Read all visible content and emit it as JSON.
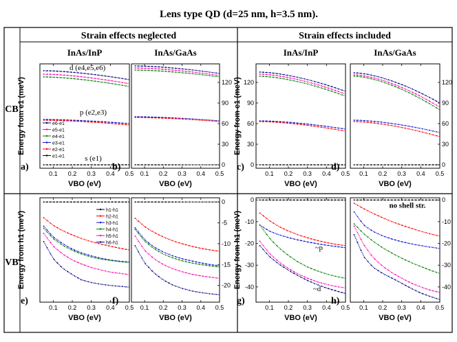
{
  "title": "Lens type QD (d=25 nm, h=3.5 nm).",
  "headers": {
    "neglected": "Strain effects neglected",
    "included": "Strain effects included"
  },
  "row_labels": {
    "cb": "CB",
    "vb": "VB"
  },
  "axis_labels": {
    "x": "VBO (eV)",
    "y_cb": "Energy from e1 (meV)",
    "y_vb": "Energy from h1 (meV)"
  },
  "colors": {
    "c1": "#000000",
    "c2": "#ff0000",
    "c3": "#1010d0",
    "c4": "#008000",
    "c5": "#ff00aa",
    "c6": "#000080"
  },
  "chart_data": [
    {
      "id": "a",
      "type": "line",
      "panel_label": "a)",
      "subtitle": "InAs/InP",
      "xlabel": "VBO (eV)",
      "ylabel": "Energy from e1 (meV)",
      "xlim": [
        0.03,
        0.5
      ],
      "ylim": [
        -5,
        147
      ],
      "xticks": [
        0.1,
        0.2,
        0.3,
        0.4,
        0.5
      ],
      "yticks": [],
      "x": [
        0.05,
        0.5
      ],
      "series": [
        {
          "name": "e6-e1",
          "color": "#000080",
          "values": [
            137,
            124
          ]
        },
        {
          "name": "e5-e1",
          "color": "#ff00aa",
          "values": [
            132,
            118
          ]
        },
        {
          "name": "e4-e1",
          "color": "#008000",
          "values": [
            128,
            114
          ]
        },
        {
          "name": "e3-e1",
          "color": "#1010d0",
          "values": [
            66,
            60
          ]
        },
        {
          "name": "e2-e1",
          "color": "#ff0000",
          "values": [
            65,
            58
          ]
        },
        {
          "name": "e1-e1",
          "color": "#000000",
          "values": [
            0,
            0
          ]
        }
      ],
      "legend": {
        "position": "left-middle",
        "items": [
          "e6-e1",
          "e5-e1",
          "e4-e1",
          "e3-e1",
          "e2-e1",
          "e1-e1"
        ]
      },
      "annotations": [
        {
          "text": "d (e4,e5,e6)",
          "x": 0.28,
          "y": 138
        },
        {
          "text": "p (e2,e3)",
          "x": 0.31,
          "y": 73
        },
        {
          "text": "s (e1)",
          "x": 0.31,
          "y": 6
        }
      ]
    },
    {
      "id": "b",
      "type": "line",
      "panel_label": "b)",
      "subtitle": "InAs/GaAs",
      "xlabel": "VBO (eV)",
      "ylabel": "",
      "xlim": [
        0.03,
        0.5
      ],
      "ylim": [
        -5,
        147
      ],
      "xticks": [
        0.1,
        0.2,
        0.3,
        0.4,
        0.5
      ],
      "yticks": [
        0,
        30,
        60,
        90,
        120
      ],
      "x": [
        0.05,
        0.5
      ],
      "series": [
        {
          "name": "e6-e1",
          "color": "#000080",
          "values": [
            144,
            133
          ]
        },
        {
          "name": "e5-e1",
          "color": "#ff00aa",
          "values": [
            141,
            130
          ]
        },
        {
          "name": "e4-e1",
          "color": "#008000",
          "values": [
            138,
            128
          ]
        },
        {
          "name": "e3-e1",
          "color": "#1010d0",
          "values": [
            70,
            64
          ]
        },
        {
          "name": "e2-e1",
          "color": "#ff0000",
          "values": [
            69,
            63
          ]
        },
        {
          "name": "e1-e1",
          "color": "#000000",
          "values": [
            0,
            0
          ]
        }
      ]
    },
    {
      "id": "c",
      "type": "line",
      "panel_label": "c)",
      "subtitle": "InAs/InP",
      "xlabel": "VBO (eV)",
      "ylabel": "Energy from e1 (meV)",
      "xlim": [
        0.03,
        0.5
      ],
      "ylim": [
        -5,
        147
      ],
      "xticks": [
        0.1,
        0.2,
        0.3,
        0.4,
        0.5
      ],
      "yticks": [
        0,
        30,
        60,
        90,
        120
      ],
      "x": [
        0.05,
        0.5
      ],
      "series": [
        {
          "name": "e6-e1",
          "color": "#000080",
          "values": [
            135,
            107
          ]
        },
        {
          "name": "e5-e1",
          "color": "#ff00aa",
          "values": [
            132,
            103
          ]
        },
        {
          "name": "e4-e1",
          "color": "#008000",
          "values": [
            129,
            100
          ]
        },
        {
          "name": "e3-e1",
          "color": "#1010d0",
          "values": [
            64,
            52
          ]
        },
        {
          "name": "e2-e1",
          "color": "#ff0000",
          "values": [
            63,
            49
          ]
        },
        {
          "name": "e1-e1",
          "color": "#000000",
          "values": [
            0,
            0
          ]
        }
      ]
    },
    {
      "id": "d",
      "type": "line",
      "panel_label": "d)",
      "subtitle": "InAs/GaAs",
      "xlabel": "VBO (eV)",
      "ylabel": "",
      "xlim": [
        0.03,
        0.5
      ],
      "ylim": [
        -5,
        147
      ],
      "xticks": [
        0.1,
        0.2,
        0.3,
        0.4,
        0.5
      ],
      "yticks": [
        0,
        30,
        60,
        90,
        120
      ],
      "x": [
        0.05,
        0.5
      ],
      "series": [
        {
          "name": "e6-e1",
          "color": "#000080",
          "values": [
            134,
            90
          ]
        },
        {
          "name": "e5-e1",
          "color": "#ff00aa",
          "values": [
            131,
            84
          ]
        },
        {
          "name": "e4-e1",
          "color": "#008000",
          "values": [
            129,
            80
          ]
        },
        {
          "name": "e3-e1",
          "color": "#1010d0",
          "values": [
            65,
            47
          ]
        },
        {
          "name": "e2-e1",
          "color": "#ff0000",
          "values": [
            63,
            41
          ]
        },
        {
          "name": "e1-e1",
          "color": "#000000",
          "values": [
            0,
            0
          ]
        }
      ]
    },
    {
      "id": "e",
      "type": "line",
      "panel_label": "e)",
      "subtitle": "",
      "xlabel": "VBO (eV)",
      "ylabel": "Energy from h1 (meV)",
      "xlim": [
        0.03,
        0.5
      ],
      "ylim": [
        -24,
        1
      ],
      "xticks": [
        0.1,
        0.2,
        0.3,
        0.4,
        0.5
      ],
      "yticks": [],
      "x": [
        0.05,
        0.1,
        0.15,
        0.2,
        0.25,
        0.3,
        0.35,
        0.4,
        0.45,
        0.5
      ],
      "series": [
        {
          "name": "h1-h1",
          "color": "#000000",
          "values": [
            0,
            0,
            0,
            0,
            0,
            0,
            0,
            0,
            0,
            0
          ]
        },
        {
          "name": "h2-h1",
          "color": "#ff0000",
          "values": [
            -3.8,
            -5.6,
            -6.9,
            -7.9,
            -8.8,
            -9.5,
            -10.1,
            -10.6,
            -11.1,
            -11.5
          ]
        },
        {
          "name": "h3-h1",
          "color": "#1010d0",
          "values": [
            -5.8,
            -8.4,
            -10.0,
            -11.3,
            -12.2,
            -12.9,
            -13.5,
            -13.9,
            -14.2,
            -14.4
          ]
        },
        {
          "name": "h4-h1",
          "color": "#008000",
          "values": [
            -6.3,
            -8.8,
            -10.4,
            -11.6,
            -12.5,
            -13.2,
            -13.7,
            -14.0,
            -14.3,
            -14.5
          ]
        },
        {
          "name": "h5-h1",
          "color": "#ff00aa",
          "values": [
            -7.5,
            -10.6,
            -12.5,
            -13.9,
            -14.9,
            -15.7,
            -16.3,
            -16.8,
            -17.1,
            -17.4
          ]
        },
        {
          "name": "h6-h1",
          "color": "#000080",
          "values": [
            -9.5,
            -13.6,
            -15.9,
            -17.4,
            -18.7,
            -19.3,
            -19.7,
            -20.0,
            -20.2,
            -20.4
          ]
        }
      ],
      "legend": {
        "position": "top-right",
        "items": [
          "h1-h1",
          "h2-h1",
          "h3-h1",
          "h4-h1",
          "h5-h1",
          "h6-h1"
        ]
      }
    },
    {
      "id": "f",
      "type": "line",
      "panel_label": "f)",
      "subtitle": "",
      "xlabel": "VBO (eV)",
      "ylabel": "",
      "xlim": [
        0.03,
        0.5
      ],
      "ylim": [
        -24,
        1
      ],
      "xticks": [
        0.1,
        0.2,
        0.3,
        0.4,
        0.5
      ],
      "yticks": [
        0,
        -5,
        -10,
        -15,
        -20
      ],
      "x": [
        0.05,
        0.1,
        0.15,
        0.2,
        0.25,
        0.3,
        0.35,
        0.4,
        0.45,
        0.5
      ],
      "series": [
        {
          "name": "h1-h1",
          "color": "#000000",
          "values": [
            0,
            0,
            0,
            0,
            0,
            0,
            0,
            0,
            0,
            0
          ]
        },
        {
          "name": "h2-h1",
          "color": "#ff0000",
          "values": [
            -3.9,
            -5.9,
            -7.3,
            -8.4,
            -9.3,
            -10.0,
            -10.6,
            -11.1,
            -11.5,
            -11.8
          ]
        },
        {
          "name": "h3-h1",
          "color": "#1010d0",
          "values": [
            -6.2,
            -9.0,
            -10.8,
            -12.0,
            -12.9,
            -13.6,
            -14.1,
            -14.6,
            -15.0,
            -15.3
          ]
        },
        {
          "name": "h4-h1",
          "color": "#008000",
          "values": [
            -6.6,
            -9.4,
            -11.2,
            -12.5,
            -13.4,
            -14.1,
            -14.6,
            -15.0,
            -15.3,
            -15.6
          ]
        },
        {
          "name": "h5-h1",
          "color": "#ff00aa",
          "values": [
            -8.2,
            -11.6,
            -13.6,
            -15.0,
            -16.0,
            -16.7,
            -17.3,
            -17.7,
            -18.0,
            -18.3
          ]
        },
        {
          "name": "h6-h1",
          "color": "#000080",
          "values": [
            -10.5,
            -14.6,
            -17.0,
            -18.7,
            -19.9,
            -20.7,
            -21.3,
            -21.7,
            -22.0,
            -22.2
          ]
        }
      ]
    },
    {
      "id": "g",
      "type": "line",
      "panel_label": "g)",
      "subtitle": "",
      "xlabel": "VBO (eV)",
      "ylabel": "Energy from h1 (meV)",
      "xlim": [
        0.03,
        0.5
      ],
      "ylim": [
        -47,
        1
      ],
      "xticks": [
        0.1,
        0.2,
        0.3,
        0.4,
        0.5
      ],
      "yticks": [
        0,
        -10,
        -20,
        -30,
        -40
      ],
      "x": [
        0.05,
        0.1,
        0.15,
        0.2,
        0.25,
        0.3,
        0.35,
        0.4,
        0.45,
        0.5
      ],
      "series": [
        {
          "name": "h1-h1",
          "color": "#000000",
          "values": [
            0,
            0,
            0,
            0,
            0,
            0,
            0,
            0,
            0,
            0
          ]
        },
        {
          "name": "h2-h1",
          "color": "#ff0000",
          "values": [
            -6,
            -9.5,
            -12.2,
            -14.3,
            -16.0,
            -17.4,
            -18.6,
            -19.6,
            -20.4,
            -21.0
          ]
        },
        {
          "name": "h3-h1",
          "color": "#1010d0",
          "values": [
            -11.5,
            -14.3,
            -16.0,
            -17.3,
            -18.4,
            -19.3,
            -20.1,
            -20.8,
            -21.4,
            -22.0
          ]
        },
        {
          "name": "h4-h1",
          "color": "#008000",
          "values": [
            -11.5,
            -17.5,
            -22.0,
            -25.5,
            -28.5,
            -30.8,
            -32.6,
            -34.0,
            -35.2,
            -36.0
          ]
        },
        {
          "name": "h5-h1",
          "color": "#ff00aa",
          "values": [
            -19.0,
            -24.5,
            -28.5,
            -31.5,
            -34.0,
            -36.0,
            -37.6,
            -38.8,
            -39.8,
            -40.5
          ]
        },
        {
          "name": "h6-h1",
          "color": "#000080",
          "values": [
            -21.0,
            -26.0,
            -29.5,
            -32.3,
            -34.8,
            -37.0,
            -38.9,
            -40.5,
            -41.8,
            -43.0
          ]
        }
      ],
      "annotations": [
        {
          "text": "~p",
          "x": 0.36,
          "y": -23
        },
        {
          "text": "~d",
          "x": 0.35,
          "y": -42
        }
      ]
    },
    {
      "id": "h",
      "type": "line",
      "panel_label": "h)",
      "subtitle": "",
      "xlabel": "VBO (eV)",
      "ylabel": "",
      "xlim": [
        0.03,
        0.5
      ],
      "ylim": [
        -47,
        1
      ],
      "xticks": [
        0.1,
        0.2,
        0.3,
        0.4,
        0.5
      ],
      "yticks": [
        0,
        -10,
        -20,
        -30,
        -40
      ],
      "x": [
        0.05,
        0.1,
        0.15,
        0.2,
        0.25,
        0.3,
        0.35,
        0.4,
        0.45,
        0.5
      ],
      "series": [
        {
          "name": "h1-h1",
          "color": "#000000",
          "values": [
            0,
            0,
            0,
            0,
            0,
            0,
            0,
            0,
            0,
            0
          ]
        },
        {
          "name": "h2-h1",
          "color": "#ff0000",
          "values": [
            -1.5,
            -4.0,
            -6.2,
            -8.2,
            -10.0,
            -11.6,
            -13.0,
            -14.4,
            -15.6,
            -16.6
          ]
        },
        {
          "name": "h3-h1",
          "color": "#1010d0",
          "values": [
            -5.5,
            -11.5,
            -14.5,
            -16.5,
            -18.0,
            -19.2,
            -20.2,
            -21.0,
            -21.7,
            -22.3
          ]
        },
        {
          "name": "h4-h1",
          "color": "#008000",
          "values": [
            -11.0,
            -15.5,
            -19.0,
            -22.0,
            -24.5,
            -26.8,
            -28.8,
            -30.6,
            -32.3,
            -33.8
          ]
        },
        {
          "name": "h5-h1",
          "color": "#ff00aa",
          "values": [
            -12.0,
            -20.5,
            -26.5,
            -30.5,
            -33.5,
            -36.0,
            -38.2,
            -40.0,
            -41.5,
            -42.5
          ]
        },
        {
          "name": "h6-h1",
          "color": "#000080",
          "values": [
            -16.0,
            -26.0,
            -31.0,
            -33.8,
            -36.0,
            -38.3,
            -40.7,
            -42.8,
            -44.4,
            -45.8
          ]
        }
      ],
      "annotations": [
        {
          "text": "no shell str.",
          "x": 0.33,
          "y": -3.5
        }
      ]
    }
  ]
}
